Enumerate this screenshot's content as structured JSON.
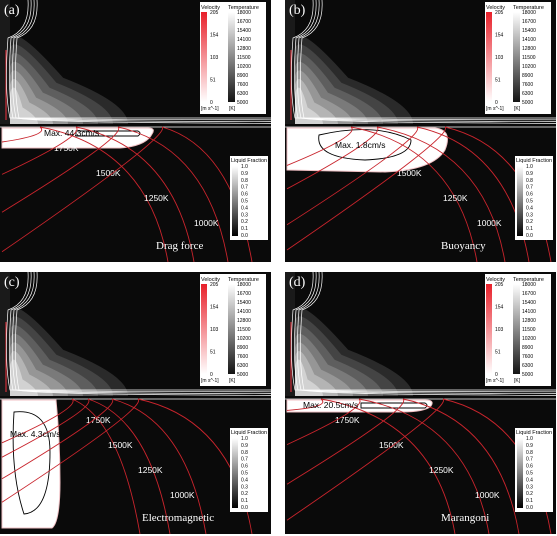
{
  "panels": [
    {
      "label": "(a)",
      "mechanism": "Drag force",
      "max_velocity": "Max. 44.3cm/s",
      "pool": "a"
    },
    {
      "label": "(b)",
      "mechanism": "Buoyancy",
      "max_velocity": "Max. 1.8cm/s",
      "pool": "b"
    },
    {
      "label": "(c)",
      "mechanism": "Electromagnetic",
      "max_velocity": "Max. 4.3cm/s",
      "pool": "c"
    },
    {
      "label": "(d)",
      "mechanism": "Marangoni",
      "max_velocity": "Max. 20.5cm/s",
      "pool": "d"
    }
  ],
  "velocity_legend": {
    "title": "Velocity",
    "ticks": [
      "205",
      "154",
      "103",
      "51",
      "0"
    ],
    "unit": "[m s^-1]",
    "color_max": "#e8202a"
  },
  "temperature_legend": {
    "title": "Temperature",
    "ticks": [
      "18000",
      "16700",
      "15400",
      "14100",
      "12800",
      "11500",
      "10200",
      "8900",
      "7600",
      "6300",
      "5000"
    ],
    "unit": "[K]"
  },
  "liquid_fraction_legend": {
    "title": "Liquid Fraction",
    "ticks": [
      "1.0",
      "0.9",
      "0.8",
      "0.7",
      "0.6",
      "0.5",
      "0.4",
      "0.3",
      "0.2",
      "0.1",
      "0.0"
    ]
  },
  "isotherms": [
    "1750K",
    "1500K",
    "1250K",
    "1000K"
  ],
  "colors": {
    "isotherm": "#c8242c",
    "background": "#0a0a0a",
    "pool": "#ffffff"
  }
}
